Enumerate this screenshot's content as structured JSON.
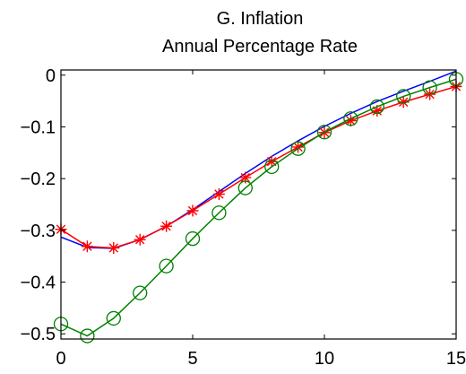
{
  "chart_data": {
    "type": "line",
    "title": "G. Inflation",
    "subtitle": "Annual Percentage Rate",
    "xlabel": "",
    "ylabel": "",
    "xlim": [
      0,
      15
    ],
    "ylim": [
      -0.51,
      0.01
    ],
    "x_ticks": [
      0,
      5,
      10,
      15
    ],
    "x_tick_labels": [
      "0",
      "5",
      "10",
      "15"
    ],
    "y_ticks": [
      0,
      -0.1,
      -0.2,
      -0.3,
      -0.4,
      -0.5
    ],
    "y_tick_labels": [
      "0",
      "−0.1",
      "−0.2",
      "−0.3",
      "−0.4",
      "−0.5"
    ],
    "grid": false,
    "legend": "none",
    "x": [
      0,
      1,
      2,
      3,
      4,
      5,
      6,
      7,
      8,
      9,
      10,
      11,
      12,
      13,
      14,
      15
    ],
    "series": [
      {
        "color": "#0000ff",
        "marker": "none",
        "values": [
          -0.313,
          -0.333,
          -0.335,
          -0.318,
          -0.292,
          -0.26,
          -0.225,
          -0.19,
          -0.157,
          -0.127,
          -0.099,
          -0.074,
          -0.051,
          -0.031,
          -0.012,
          0.008
        ]
      },
      {
        "color": "#ff0000",
        "marker": "asterisk",
        "values": [
          -0.298,
          -0.331,
          -0.334,
          -0.318,
          -0.292,
          -0.262,
          -0.23,
          -0.198,
          -0.167,
          -0.139,
          -0.111,
          -0.088,
          -0.069,
          -0.052,
          -0.037,
          -0.022
        ]
      },
      {
        "color": "#008000",
        "marker": "circle",
        "values": [
          -0.481,
          -0.504,
          -0.47,
          -0.421,
          -0.369,
          -0.316,
          -0.266,
          -0.218,
          -0.177,
          -0.142,
          -0.11,
          -0.084,
          -0.061,
          -0.041,
          -0.024,
          -0.008
        ]
      }
    ]
  }
}
